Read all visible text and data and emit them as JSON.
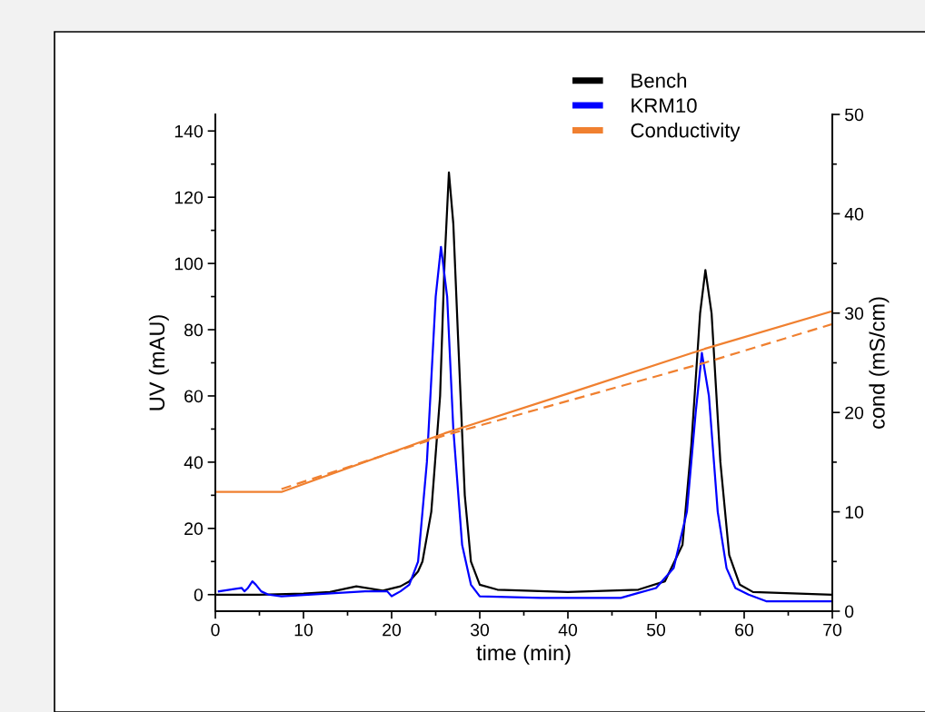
{
  "chart_data": {
    "type": "line",
    "xlabel": "time (min)",
    "ylabel": "UV (mAU)",
    "y2label": "cond (mS/cm)",
    "xlim": [
      0,
      70
    ],
    "xticks": [
      0,
      10,
      20,
      30,
      40,
      50,
      60,
      70
    ],
    "ylim": [
      -5,
      145
    ],
    "yticks": [
      0,
      20,
      40,
      60,
      80,
      100,
      120,
      140
    ],
    "y2lim": [
      0,
      50
    ],
    "y2ticks": [
      0,
      10,
      20,
      30,
      40,
      50
    ],
    "legend": "top right",
    "grid": false,
    "marker": "none",
    "series": [
      {
        "name": "Bench",
        "color": "#000000",
        "x": [
          0,
          5,
          10,
          13,
          16,
          19,
          21,
          22,
          23,
          23.5,
          24.5,
          25.5,
          26,
          26.5,
          27,
          27.5,
          28.3,
          29,
          30,
          32,
          40,
          48,
          51,
          53,
          54,
          55,
          55.6,
          56.3,
          57.3,
          58.3,
          59.5,
          61,
          70
        ],
        "values": [
          0,
          0,
          0.3,
          0.8,
          2.5,
          1.2,
          2.5,
          4,
          7,
          10,
          25,
          60,
          100,
          127.5,
          112,
          80,
          30,
          10,
          3,
          1.5,
          0.8,
          1.5,
          4,
          15,
          45,
          85,
          98,
          85,
          40,
          12,
          3,
          0.8,
          0
        ]
      },
      {
        "name": "KRM10",
        "color": "#0000ff",
        "x": [
          0.4,
          3,
          3.3,
          3.7,
          4.2,
          4.6,
          5.2,
          6,
          7.5,
          17,
          17.5,
          19.5,
          20,
          21,
          22,
          23,
          24,
          25,
          25.6,
          26.3,
          27,
          28,
          29,
          30,
          37,
          46,
          48,
          50,
          52,
          53.5,
          54.5,
          55.2,
          56,
          57,
          58,
          59,
          60.5,
          62.5,
          70
        ],
        "values": [
          1,
          2,
          1,
          2,
          4,
          3,
          1,
          0,
          -0.5,
          1,
          1,
          1,
          -0.5,
          1,
          3,
          10,
          40,
          90,
          105,
          90,
          50,
          15,
          3,
          -0.5,
          -1,
          -1,
          0.5,
          2,
          8,
          25,
          55,
          73,
          60,
          25,
          8,
          2,
          0,
          -2,
          -2
        ]
      },
      {
        "name": "Conductivity",
        "color": "#f08030",
        "axis": "y2",
        "line_style": "solid",
        "x": [
          0,
          7.5,
          26,
          40,
          55.5,
          70
        ],
        "values": [
          12,
          12,
          17.9,
          21.9,
          26.4,
          30.2
        ]
      },
      {
        "color": "#f08030",
        "axis": "y2",
        "line_style": "dashed",
        "x": [
          7.5,
          26,
          55.5,
          70
        ],
        "values": [
          12.3,
          17.7,
          25.0,
          28.9
        ]
      }
    ]
  }
}
